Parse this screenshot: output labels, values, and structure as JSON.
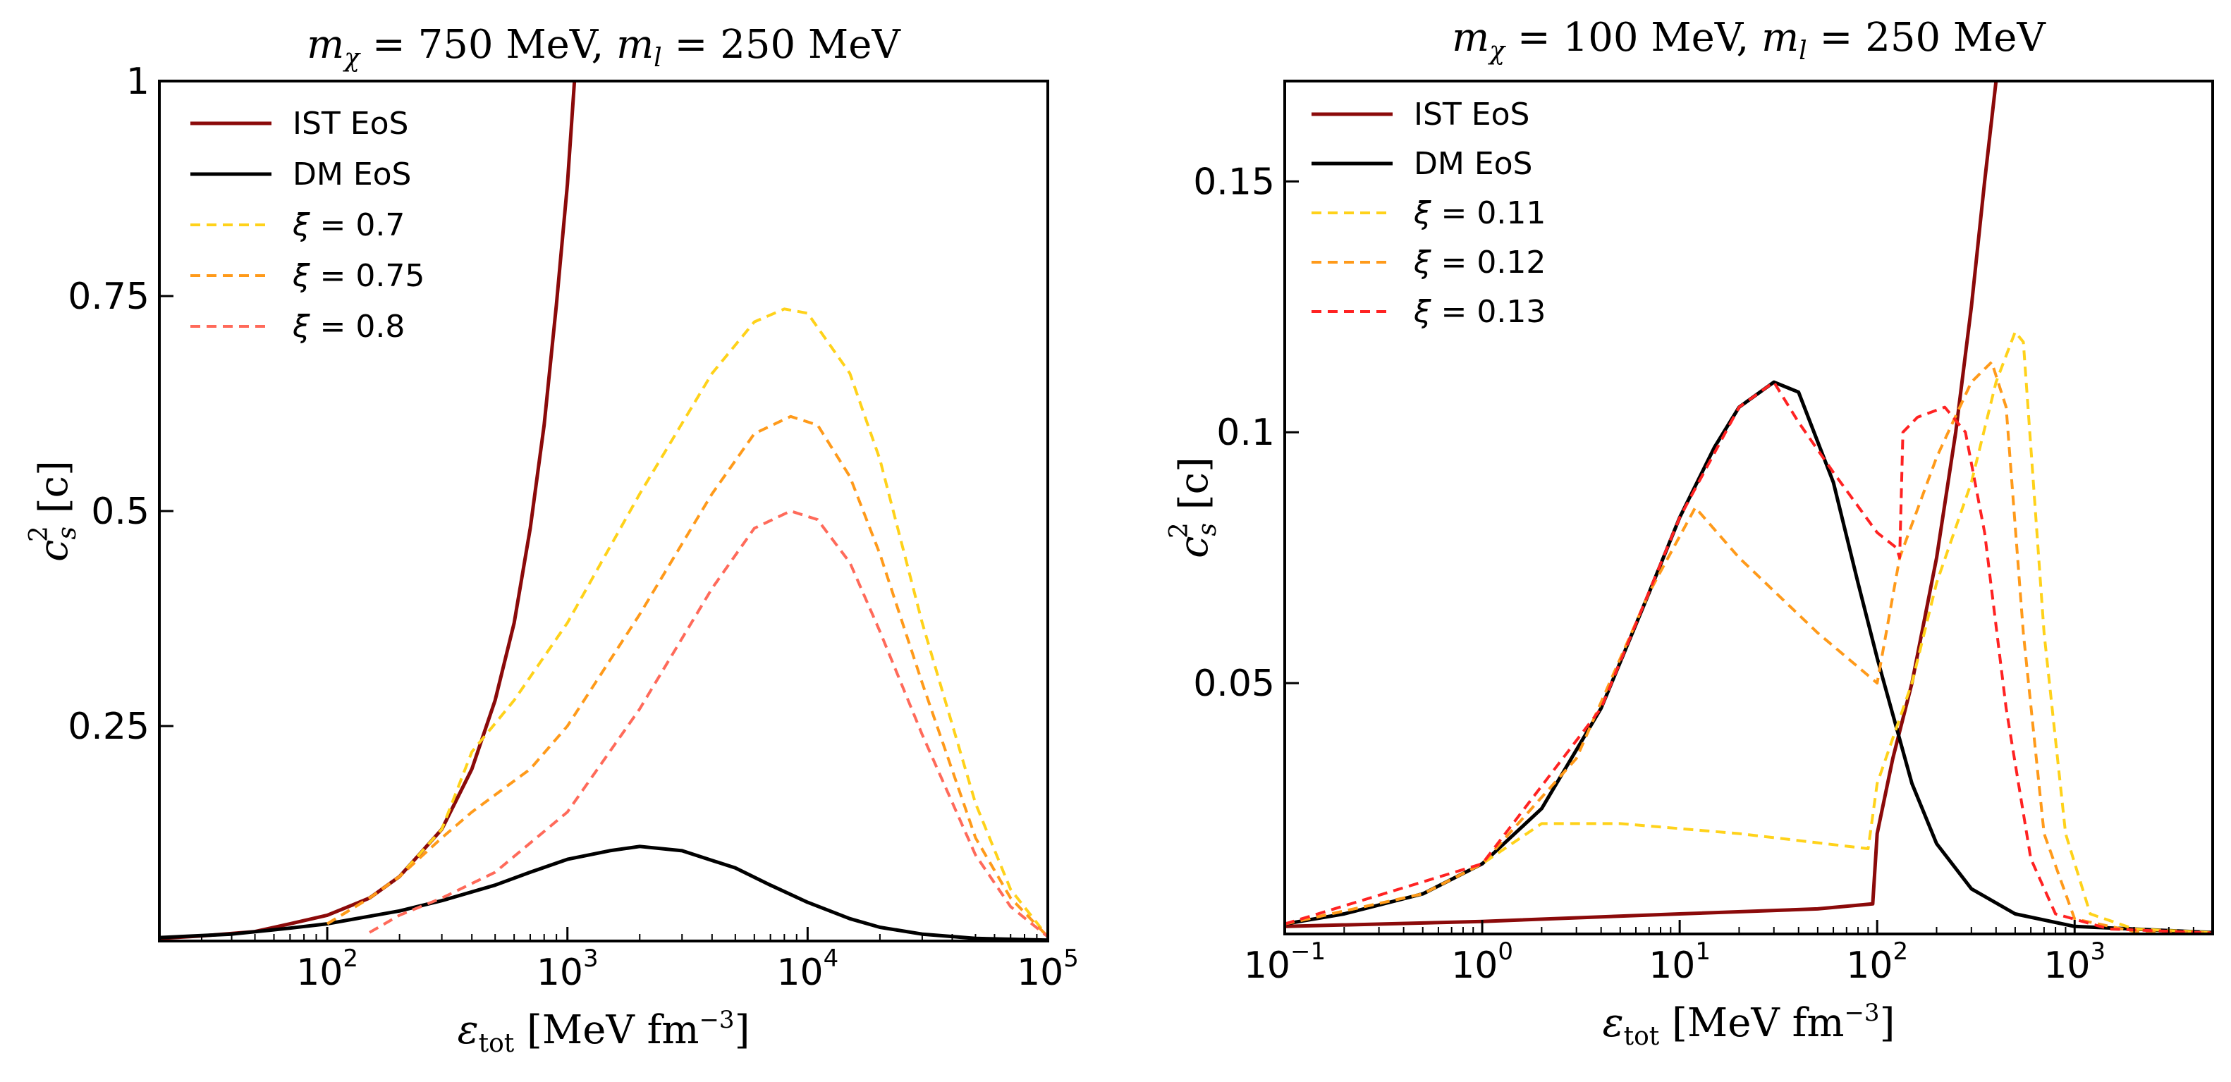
{
  "chart_data": [
    {
      "type": "line",
      "title": "m_χ = 750 MeV, m_l = 250 MeV",
      "title_parts": {
        "m_chi_sym": "m",
        "m_chi_sub": "χ",
        "m_chi_val": " = 750 ",
        "unit1": "MeV",
        "sep": ", ",
        "m_l_sym": "m",
        "m_l_sub": "l",
        "m_l_val": " = 250 ",
        "unit2": "MeV"
      },
      "xlabel": "ε_tot [MeV fm^-3]",
      "xlabel_parts": {
        "sym": "ε",
        "sub": "tot",
        "unit": " [MeV fm",
        "exp": "−3",
        "close": "]"
      },
      "ylabel": "c_s^2 [c]",
      "ylabel_parts": {
        "sym": "c",
        "sub": "s",
        "sup": "2",
        "unit": " [c]"
      },
      "xscale": "log",
      "xlim": [
        20,
        100000
      ],
      "ylim": [
        0,
        1
      ],
      "xticks": [
        {
          "value": 100,
          "base": "10",
          "exp": "2"
        },
        {
          "value": 1000,
          "base": "10",
          "exp": "3"
        },
        {
          "value": 10000,
          "base": "10",
          "exp": "4"
        },
        {
          "value": 100000,
          "base": "10",
          "exp": "5"
        }
      ],
      "yticks": [
        {
          "value": 0.25,
          "label": "0.25"
        },
        {
          "value": 0.5,
          "label": "0.5"
        },
        {
          "value": 0.75,
          "label": "0.75"
        },
        {
          "value": 1.0,
          "label": "1"
        }
      ],
      "legend_position": "top-left",
      "series": [
        {
          "name": "IST EoS",
          "legend_label": "IST EoS",
          "style": "solid",
          "color": "#8b0a0a",
          "points": [
            [
              20,
              0.003
            ],
            [
              30,
              0.006
            ],
            [
              50,
              0.011
            ],
            [
              70,
              0.02
            ],
            [
              100,
              0.03
            ],
            [
              150,
              0.05
            ],
            [
              200,
              0.075
            ],
            [
              300,
              0.13
            ],
            [
              400,
              0.2
            ],
            [
              500,
              0.28
            ],
            [
              600,
              0.37
            ],
            [
              700,
              0.48
            ],
            [
              800,
              0.6
            ],
            [
              900,
              0.74
            ],
            [
              1000,
              0.88
            ],
            [
              1070,
              1.0
            ]
          ]
        },
        {
          "name": "DM EoS",
          "legend_label": "DM EoS",
          "style": "solid",
          "color": "#000000",
          "points": [
            [
              20,
              0.004
            ],
            [
              40,
              0.008
            ],
            [
              70,
              0.015
            ],
            [
              100,
              0.02
            ],
            [
              200,
              0.035
            ],
            [
              300,
              0.047
            ],
            [
              500,
              0.065
            ],
            [
              700,
              0.08
            ],
            [
              1000,
              0.095
            ],
            [
              1500,
              0.105
            ],
            [
              2000,
              0.11
            ],
            [
              3000,
              0.105
            ],
            [
              5000,
              0.085
            ],
            [
              7000,
              0.065
            ],
            [
              10000,
              0.045
            ],
            [
              15000,
              0.026
            ],
            [
              20000,
              0.016
            ],
            [
              30000,
              0.008
            ],
            [
              50000,
              0.003
            ],
            [
              100000,
              0.001
            ]
          ]
        },
        {
          "name": "xi = 0.7",
          "legend_sym": "ξ",
          "legend_val": " = 0.7",
          "style": "dashed",
          "color": "#ffd21a",
          "points": [
            [
              100,
              0.02
            ],
            [
              150,
              0.05
            ],
            [
              200,
              0.075
            ],
            [
              300,
              0.13
            ],
            [
              400,
              0.22
            ],
            [
              600,
              0.28
            ],
            [
              1000,
              0.37
            ],
            [
              2000,
              0.52
            ],
            [
              4000,
              0.66
            ],
            [
              6000,
              0.72
            ],
            [
              8000,
              0.735
            ],
            [
              10000,
              0.73
            ],
            [
              15000,
              0.66
            ],
            [
              20000,
              0.56
            ],
            [
              30000,
              0.37
            ],
            [
              50000,
              0.16
            ],
            [
              70000,
              0.06
            ],
            [
              100000,
              0.005
            ]
          ]
        },
        {
          "name": "xi = 0.75",
          "legend_sym": "ξ",
          "legend_val": " = 0.75",
          "style": "dashed",
          "color": "#ff9a1a",
          "points": [
            [
              100,
              0.02
            ],
            [
              150,
              0.05
            ],
            [
              200,
              0.075
            ],
            [
              300,
              0.12
            ],
            [
              400,
              0.15
            ],
            [
              700,
              0.2
            ],
            [
              1000,
              0.25
            ],
            [
              2000,
              0.38
            ],
            [
              4000,
              0.52
            ],
            [
              6000,
              0.59
            ],
            [
              8500,
              0.61
            ],
            [
              11000,
              0.6
            ],
            [
              15000,
              0.54
            ],
            [
              20000,
              0.45
            ],
            [
              30000,
              0.3
            ],
            [
              50000,
              0.12
            ],
            [
              70000,
              0.05
            ],
            [
              100000,
              0.005
            ]
          ]
        },
        {
          "name": "xi = 0.8",
          "legend_sym": "ξ",
          "legend_val": " = 0.8",
          "style": "dashed",
          "color": "#ff6a5a",
          "points": [
            [
              150,
              0.01
            ],
            [
              200,
              0.03
            ],
            [
              300,
              0.05
            ],
            [
              500,
              0.08
            ],
            [
              1000,
              0.15
            ],
            [
              2000,
              0.27
            ],
            [
              4000,
              0.41
            ],
            [
              6000,
              0.48
            ],
            [
              8500,
              0.5
            ],
            [
              11000,
              0.49
            ],
            [
              15000,
              0.44
            ],
            [
              20000,
              0.36
            ],
            [
              30000,
              0.24
            ],
            [
              50000,
              0.1
            ],
            [
              70000,
              0.04
            ],
            [
              100000,
              0.005
            ]
          ]
        }
      ]
    },
    {
      "type": "line",
      "title": "m_χ = 100 MeV, m_l = 250 MeV",
      "title_parts": {
        "m_chi_sym": "m",
        "m_chi_sub": "χ",
        "m_chi_val": " = 100 ",
        "unit1": "MeV",
        "sep": ", ",
        "m_l_sym": "m",
        "m_l_sub": "l",
        "m_l_val": " = 250 ",
        "unit2": "MeV"
      },
      "xlabel": "ε_tot [MeV fm^-3]",
      "xlabel_parts": {
        "sym": "ε",
        "sub": "tot",
        "unit": " [MeV fm",
        "exp": "−3",
        "close": "]"
      },
      "ylabel": "c_s^2 [c]",
      "ylabel_parts": {
        "sym": "c",
        "sub": "s",
        "sup": "2",
        "unit": " [c]"
      },
      "xscale": "log",
      "xlim": [
        0.1,
        5000
      ],
      "ylim": [
        0,
        0.17
      ],
      "xticks": [
        {
          "value": 0.1,
          "base": "10",
          "exp": "−1"
        },
        {
          "value": 1,
          "base": "10",
          "exp": "0"
        },
        {
          "value": 10,
          "base": "10",
          "exp": "1"
        },
        {
          "value": 100,
          "base": "10",
          "exp": "2"
        },
        {
          "value": 1000,
          "base": "10",
          "exp": "3"
        }
      ],
      "yticks": [
        {
          "value": 0.05,
          "label": "0.05"
        },
        {
          "value": 0.1,
          "label": "0.1"
        },
        {
          "value": 0.15,
          "label": "0.15"
        }
      ],
      "legend_position": "top-left",
      "series": [
        {
          "name": "IST EoS",
          "legend_label": "IST EoS",
          "style": "solid",
          "color": "#8b0a0a",
          "points": [
            [
              0.1,
              0.0015
            ],
            [
              1,
              0.0025
            ],
            [
              10,
              0.004
            ],
            [
              50,
              0.005
            ],
            [
              95,
              0.006
            ],
            [
              100,
              0.02
            ],
            [
              120,
              0.035
            ],
            [
              150,
              0.05
            ],
            [
              200,
              0.075
            ],
            [
              250,
              0.1
            ],
            [
              300,
              0.125
            ],
            [
              350,
              0.15
            ],
            [
              400,
              0.17
            ]
          ]
        },
        {
          "name": "DM EoS",
          "legend_label": "DM EoS",
          "style": "solid",
          "color": "#000000",
          "points": [
            [
              0.1,
              0.002
            ],
            [
              0.2,
              0.004
            ],
            [
              0.5,
              0.008
            ],
            [
              1,
              0.014
            ],
            [
              2,
              0.025
            ],
            [
              4,
              0.045
            ],
            [
              7,
              0.068
            ],
            [
              10,
              0.083
            ],
            [
              15,
              0.097
            ],
            [
              20,
              0.105
            ],
            [
              30,
              0.11
            ],
            [
              40,
              0.108
            ],
            [
              60,
              0.09
            ],
            [
              80,
              0.07
            ],
            [
              100,
              0.055
            ],
            [
              150,
              0.03
            ],
            [
              200,
              0.018
            ],
            [
              300,
              0.009
            ],
            [
              500,
              0.004
            ],
            [
              1000,
              0.0015
            ],
            [
              5000,
              0.0003
            ]
          ]
        },
        {
          "name": "xi = 0.11",
          "legend_sym": "ξ",
          "legend_val": " = 0.11",
          "style": "dashed",
          "color": "#ffd21a",
          "points": [
            [
              0.1,
              0.002
            ],
            [
              0.5,
              0.008
            ],
            [
              1,
              0.014
            ],
            [
              2,
              0.022
            ],
            [
              5,
              0.022
            ],
            [
              20,
              0.02
            ],
            [
              90,
              0.017
            ],
            [
              100,
              0.03
            ],
            [
              150,
              0.05
            ],
            [
              200,
              0.07
            ],
            [
              300,
              0.09
            ],
            [
              400,
              0.11
            ],
            [
              500,
              0.12
            ],
            [
              550,
              0.118
            ],
            [
              700,
              0.06
            ],
            [
              900,
              0.02
            ],
            [
              1200,
              0.004
            ],
            [
              2000,
              0.001
            ],
            [
              5000,
              0.0003
            ]
          ]
        },
        {
          "name": "xi = 0.12",
          "legend_sym": "ξ",
          "legend_val": " = 0.12",
          "style": "dashed",
          "color": "#ff9a1a",
          "points": [
            [
              0.1,
              0.002
            ],
            [
              0.5,
              0.008
            ],
            [
              1,
              0.014
            ],
            [
              3,
              0.035
            ],
            [
              7,
              0.068
            ],
            [
              12,
              0.085
            ],
            [
              20,
              0.075
            ],
            [
              50,
              0.06
            ],
            [
              100,
              0.05
            ],
            [
              130,
              0.075
            ],
            [
              200,
              0.095
            ],
            [
              300,
              0.11
            ],
            [
              380,
              0.114
            ],
            [
              450,
              0.105
            ],
            [
              550,
              0.06
            ],
            [
              700,
              0.02
            ],
            [
              1000,
              0.003
            ],
            [
              2000,
              0.0005
            ],
            [
              5000,
              0.0002
            ]
          ]
        },
        {
          "name": "xi = 0.13",
          "legend_sym": "ξ",
          "legend_val": " = 0.13",
          "style": "dashed",
          "color": "#ff2222",
          "points": [
            [
              0.1,
              0.002
            ],
            [
              1,
              0.014
            ],
            [
              4,
              0.045
            ],
            [
              10,
              0.083
            ],
            [
              20,
              0.105
            ],
            [
              30,
              0.11
            ],
            [
              40,
              0.102
            ],
            [
              60,
              0.092
            ],
            [
              100,
              0.08
            ],
            [
              125,
              0.077
            ],
            [
              130,
              0.075
            ],
            [
              135,
              0.1
            ],
            [
              160,
              0.103
            ],
            [
              220,
              0.105
            ],
            [
              280,
              0.1
            ],
            [
              350,
              0.08
            ],
            [
              450,
              0.045
            ],
            [
              600,
              0.015
            ],
            [
              800,
              0.004
            ],
            [
              1500,
              0.001
            ],
            [
              5000,
              0.0002
            ]
          ]
        }
      ]
    }
  ]
}
